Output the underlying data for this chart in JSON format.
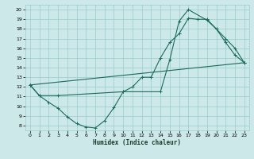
{
  "xlabel": "Humidex (Indice chaleur)",
  "background_color": "#cce8e8",
  "grid_color": "#99cccc",
  "line_color": "#1a6b5a",
  "xlim": [
    -0.5,
    23.5
  ],
  "ylim": [
    7.5,
    20.5
  ],
  "xticks": [
    0,
    1,
    2,
    3,
    4,
    5,
    6,
    7,
    8,
    9,
    10,
    11,
    12,
    13,
    14,
    15,
    16,
    17,
    18,
    19,
    20,
    21,
    22,
    23
  ],
  "yticks": [
    8,
    9,
    10,
    11,
    12,
    13,
    14,
    15,
    16,
    17,
    18,
    19,
    20
  ],
  "line1_x": [
    0,
    1,
    2,
    3,
    4,
    5,
    6,
    7,
    8,
    9,
    10,
    11,
    12,
    13,
    14,
    15,
    16,
    17,
    18,
    19,
    20,
    21,
    22,
    23
  ],
  "line1_y": [
    12.2,
    11.1,
    10.4,
    9.8,
    8.9,
    8.2,
    7.85,
    7.75,
    8.5,
    9.85,
    11.5,
    12.0,
    13.0,
    13.0,
    15.0,
    16.6,
    17.5,
    19.1,
    19.0,
    19.0,
    18.0,
    16.6,
    15.3,
    14.5
  ],
  "line2_x": [
    0,
    1,
    3,
    10,
    14,
    15,
    16,
    17,
    19,
    20,
    21,
    22,
    23
  ],
  "line2_y": [
    12.2,
    11.1,
    11.1,
    11.5,
    11.5,
    14.8,
    18.8,
    20.0,
    18.9,
    18.0,
    17.0,
    16.0,
    14.5
  ],
  "line3_x": [
    0,
    23
  ],
  "line3_y": [
    12.2,
    14.5
  ]
}
